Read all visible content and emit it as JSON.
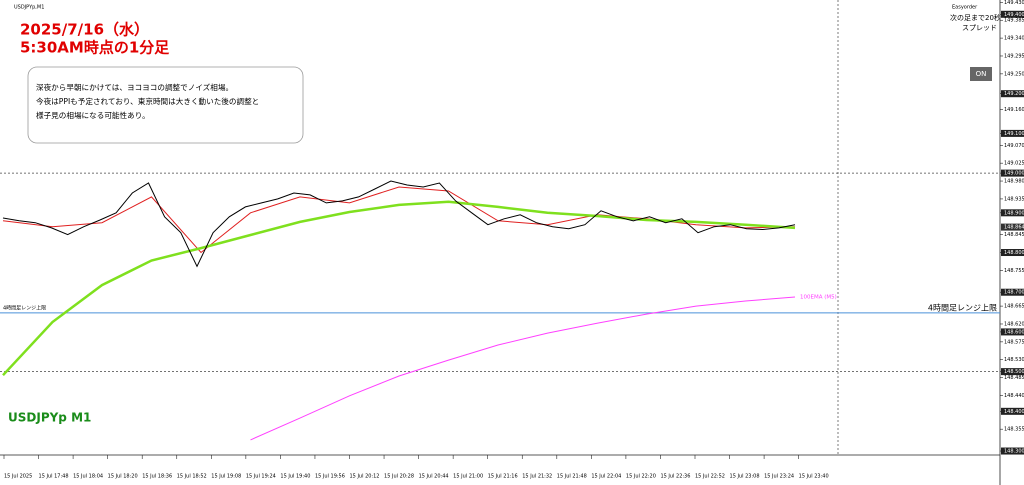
{
  "chart_data": {
    "type": "line",
    "symbol_header": "USDJPYp,M1",
    "title_lines": [
      "2025/7/16（水）",
      "5:30AM時点の1分足"
    ],
    "note_lines": [
      "深夜から早朝にかけては、ヨコヨコの調整でノイズ相場。",
      "今夜はPPIも予定されており、東京時間は大きく動いた後の調整と",
      "様子見の相場になる可能性あり。"
    ],
    "symbol_label": "USDJPYp M1",
    "panel": {
      "name": "Easyorder",
      "line1": "次の足まで20秒",
      "line2": "スプレッド",
      "button": "ON"
    },
    "ylim": [
      148.29,
      149.436
    ],
    "yticks": [
      {
        "value": 149.43,
        "label": "149.430"
      },
      {
        "value": 149.4,
        "label": "149.400"
      },
      {
        "value": 149.385,
        "label": "149.385"
      },
      {
        "value": 149.34,
        "label": "149.340"
      },
      {
        "value": 149.295,
        "label": "149.295"
      },
      {
        "value": 149.25,
        "label": "149.250"
      },
      {
        "value": 149.2,
        "label": "149.200"
      },
      {
        "value": 149.16,
        "label": "149.160"
      },
      {
        "value": 149.1,
        "label": "149.100"
      },
      {
        "value": 149.07,
        "label": "149.070"
      },
      {
        "value": 149.025,
        "label": "149.025"
      },
      {
        "value": 149.0,
        "label": "149.000"
      },
      {
        "value": 148.98,
        "label": "148.980"
      },
      {
        "value": 148.935,
        "label": "148.935"
      },
      {
        "value": 148.9,
        "label": "148.900"
      },
      {
        "value": 148.845,
        "label": "148.845"
      },
      {
        "value": 148.8,
        "label": "148.800"
      },
      {
        "value": 148.755,
        "label": "148.755"
      },
      {
        "value": 148.7,
        "label": "148.700"
      },
      {
        "value": 148.665,
        "label": "148.665"
      },
      {
        "value": 148.62,
        "label": "148.620"
      },
      {
        "value": 148.6,
        "label": "148.600"
      },
      {
        "value": 148.575,
        "label": "148.575"
      },
      {
        "value": 148.53,
        "label": "148.530"
      },
      {
        "value": 148.5,
        "label": "148.500"
      },
      {
        "value": 148.485,
        "label": "148.485"
      },
      {
        "value": 148.44,
        "label": "148.440"
      },
      {
        "value": 148.4,
        "label": "148.400"
      },
      {
        "value": 148.355,
        "label": "148.355"
      },
      {
        "value": 148.3,
        "label": "148.300"
      }
    ],
    "current_price": {
      "value": 148.864,
      "label": "148.864"
    },
    "x_labels": [
      "15 Jul 2025",
      "15 Jul 17:48",
      "15 Jul 18:04",
      "15 Jul 18:20",
      "15 Jul 18:36",
      "15 Jul 18:52",
      "15 Jul 19:08",
      "15 Jul 19:24",
      "15 Jul 19:40",
      "15 Jul 19:56",
      "15 Jul 20:12",
      "15 Jul 20:28",
      "15 Jul 20:44",
      "15 Jul 21:00",
      "15 Jul 21:16",
      "15 Jul 21:32",
      "15 Jul 21:48",
      "15 Jul 22:04",
      "15 Jul 22:20",
      "15 Jul 22:36",
      "15 Jul 22:52",
      "15 Jul 23:08",
      "15 Jul 23:24",
      "15 Jul 23:40"
    ],
    "price": {
      "color": "#000000",
      "values": [
        148.887,
        148.88,
        148.875,
        148.862,
        148.845,
        148.865,
        148.882,
        148.9,
        148.95,
        148.975,
        148.89,
        148.85,
        148.765,
        148.85,
        148.89,
        148.915,
        148.925,
        148.935,
        148.95,
        148.945,
        148.925,
        148.93,
        148.94,
        148.96,
        148.98,
        148.97,
        148.965,
        148.975,
        148.93,
        148.9,
        148.87,
        148.885,
        148.895,
        148.875,
        148.865,
        148.86,
        148.87,
        148.905,
        148.89,
        148.88,
        148.89,
        148.875,
        148.885,
        148.85,
        148.865,
        148.87,
        148.86,
        148.858,
        148.862,
        148.87
      ]
    },
    "series": [
      {
        "color": "#e02020",
        "values": [
          148.88,
          148.865,
          148.875,
          148.94,
          148.8,
          148.9,
          148.94,
          148.925,
          148.965,
          148.955,
          148.88,
          148.87,
          148.895,
          148.885,
          148.87,
          148.862,
          148.865
        ]
      },
      {
        "color": "#7fe01e",
        "values": [
          148.491,
          148.625,
          148.718,
          148.78,
          148.811,
          148.844,
          148.877,
          148.902,
          148.92,
          148.928,
          148.915,
          148.9,
          148.892,
          148.882,
          148.877,
          148.87,
          148.862
        ]
      },
      {
        "name": "100EMA (M5)",
        "color": "#ff40ff",
        "values": [
          null,
          null,
          null,
          null,
          null,
          148.328,
          148.383,
          148.439,
          148.489,
          148.529,
          148.567,
          148.597,
          148.622,
          148.645,
          148.665,
          148.678,
          148.688
        ]
      }
    ],
    "dotted_levels": [
      149.0,
      148.5
    ],
    "range_line": {
      "value": 148.648,
      "label": "4時間足レンジ上限",
      "color": "#4a90d9"
    }
  }
}
